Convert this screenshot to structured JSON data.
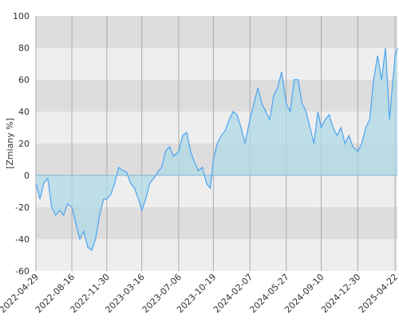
{
  "chart_data": {
    "type": "area",
    "y_label": "[Zmiany %]",
    "xlim": [
      "2022-04-29",
      "2025-04-29"
    ],
    "xticks": [
      "2022-04-29",
      "2022-08-16",
      "2022-11-30",
      "2023-03-16",
      "2023-07-06",
      "2023-10-19",
      "2024-02-07",
      "2024-05-27",
      "2024-09-10",
      "2024-12-30",
      "2025-04-22"
    ],
    "ylim": [
      -60,
      100
    ],
    "yticks": [
      -60,
      -40,
      -20,
      0,
      20,
      40,
      60,
      80,
      100
    ],
    "grid": true,
    "color": "#4da3f0",
    "fill_color": "#add8e6",
    "x": [
      "2022-04-29",
      "2022-05-11",
      "2022-05-23",
      "2022-06-04",
      "2022-06-16",
      "2022-06-28",
      "2022-07-10",
      "2022-07-22",
      "2022-08-03",
      "2022-08-16",
      "2022-08-28",
      "2022-09-09",
      "2022-09-21",
      "2022-10-03",
      "2022-10-15",
      "2022-10-27",
      "2022-11-08",
      "2022-11-20",
      "2022-11-30",
      "2022-12-12",
      "2022-12-24",
      "2023-01-05",
      "2023-01-17",
      "2023-01-29",
      "2023-02-10",
      "2023-02-22",
      "2023-03-06",
      "2023-03-16",
      "2023-03-28",
      "2023-04-09",
      "2023-04-21",
      "2023-05-03",
      "2023-05-15",
      "2023-05-27",
      "2023-06-08",
      "2023-06-20",
      "2023-07-06",
      "2023-07-18",
      "2023-07-30",
      "2023-08-11",
      "2023-08-23",
      "2023-09-04",
      "2023-09-16",
      "2023-09-28",
      "2023-10-10",
      "2023-10-19",
      "2023-10-31",
      "2023-11-12",
      "2023-11-24",
      "2023-12-06",
      "2023-12-18",
      "2023-12-30",
      "2024-01-11",
      "2024-01-23",
      "2024-02-07",
      "2024-02-19",
      "2024-03-02",
      "2024-03-14",
      "2024-03-26",
      "2024-04-07",
      "2024-04-19",
      "2024-05-01",
      "2024-05-13",
      "2024-05-27",
      "2024-06-08",
      "2024-06-20",
      "2024-07-02",
      "2024-07-14",
      "2024-07-26",
      "2024-08-07",
      "2024-08-19",
      "2024-08-31",
      "2024-09-10",
      "2024-09-22",
      "2024-10-04",
      "2024-10-16",
      "2024-10-28",
      "2024-11-09",
      "2024-11-21",
      "2024-12-03",
      "2024-12-15",
      "2024-12-30",
      "2025-01-11",
      "2025-01-23",
      "2025-02-04",
      "2025-02-16",
      "2025-02-28",
      "2025-03-12",
      "2025-03-24",
      "2025-04-05",
      "2025-04-22",
      "2025-04-29"
    ],
    "values": [
      -5,
      -15,
      -5,
      -2,
      -20,
      -25,
      -22,
      -25,
      -18,
      -20,
      -30,
      -40,
      -35,
      -45,
      -47,
      -40,
      -25,
      -15,
      -15,
      -12,
      -5,
      5,
      3,
      2,
      -5,
      -8,
      -15,
      -22,
      -15,
      -5,
      -2,
      2,
      5,
      15,
      18,
      12,
      15,
      25,
      27,
      15,
      8,
      3,
      5,
      -5,
      -8,
      10,
      20,
      25,
      28,
      35,
      40,
      38,
      30,
      20,
      35,
      45,
      55,
      45,
      40,
      35,
      50,
      55,
      65,
      45,
      40,
      60,
      60,
      45,
      40,
      30,
      20,
      40,
      30,
      35,
      38,
      30,
      25,
      30,
      20,
      25,
      18,
      15,
      20,
      30,
      35,
      60,
      75,
      60,
      80,
      35,
      75,
      80
    ]
  }
}
